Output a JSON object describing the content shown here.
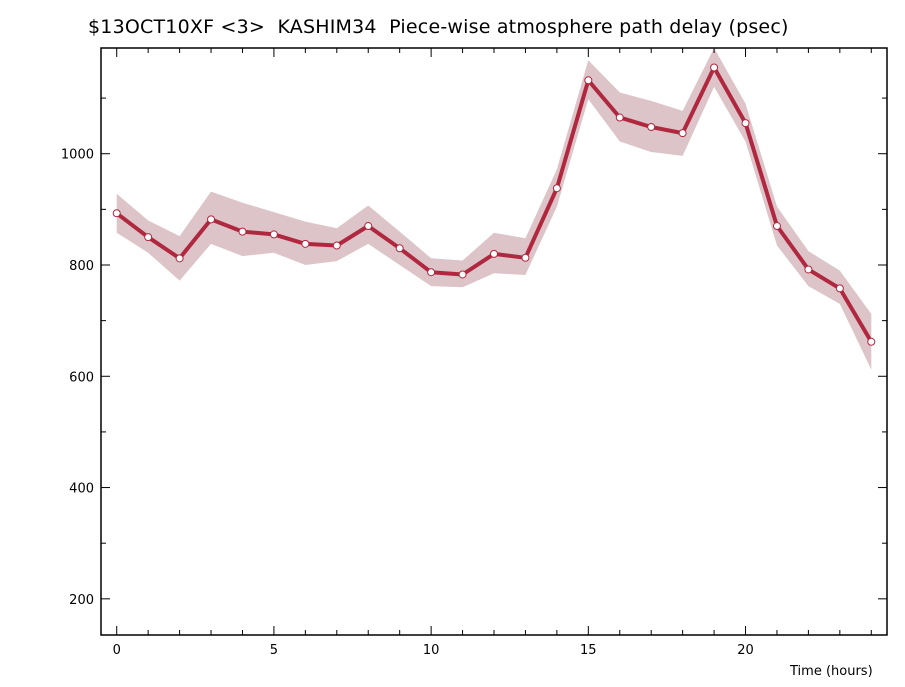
{
  "chart_data": {
    "type": "line",
    "title": "$13OCT10XF <3>  KASHIM34  Piece-wise atmosphere path delay (psec)",
    "xlabel": "Time (hours)",
    "ylabel": "",
    "xlim": [
      -0.5,
      24.5
    ],
    "ylim": [
      135,
      1190
    ],
    "x_ticks": [
      0,
      5,
      10,
      15,
      20
    ],
    "y_ticks": [
      200,
      400,
      600,
      800,
      1000
    ],
    "grid": false,
    "colors": {
      "line": "#b0283f",
      "band": "#dcc4c8",
      "marker_fill": "#ffffff"
    },
    "series": [
      {
        "x": [
          0,
          1,
          2,
          3,
          4,
          5,
          6,
          7,
          8,
          9,
          10,
          11,
          12,
          13,
          14,
          15,
          16,
          17,
          18,
          19,
          20,
          21,
          22,
          23,
          24
        ],
        "values": [
          893,
          850,
          812,
          882,
          860,
          855,
          838,
          835,
          870,
          830,
          787,
          783,
          820,
          813,
          938,
          1132,
          1065,
          1048,
          1037,
          1155,
          1055,
          870,
          792,
          758,
          662
        ],
        "band_upper": [
          928,
          880,
          852,
          932,
          912,
          895,
          878,
          866,
          907,
          860,
          812,
          808,
          858,
          848,
          972,
          1168,
          1110,
          1095,
          1077,
          1190,
          1090,
          905,
          825,
          790,
          712
        ],
        "band_lower": [
          858,
          822,
          772,
          838,
          816,
          822,
          800,
          807,
          838,
          800,
          762,
          760,
          785,
          782,
          905,
          1098,
          1022,
          1003,
          996,
          1120,
          1022,
          835,
          762,
          730,
          612
        ]
      }
    ]
  }
}
